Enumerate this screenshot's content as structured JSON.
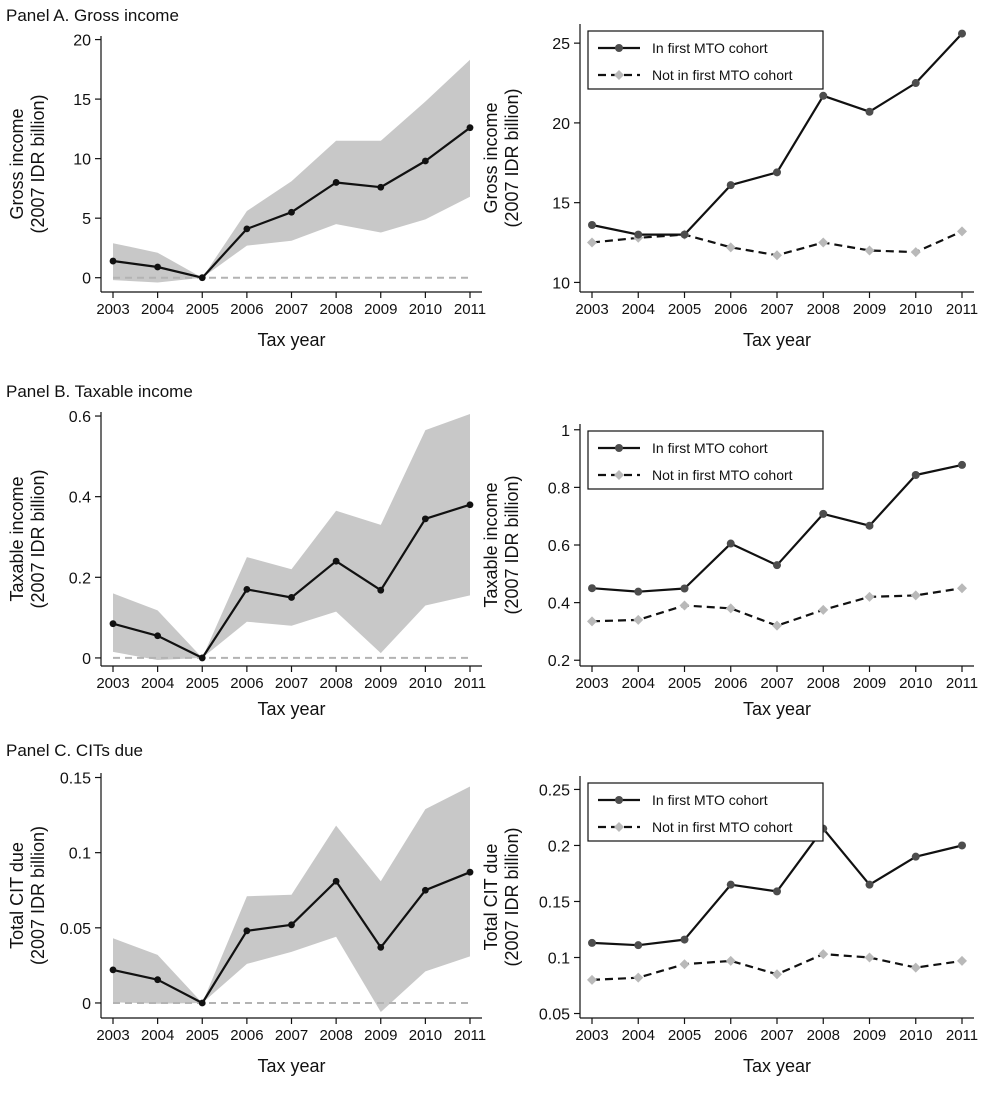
{
  "panels": [
    {
      "title": "Panel A. Gross income"
    },
    {
      "title": "Panel B. Taxable income"
    },
    {
      "title": "Panel C. CITs due"
    }
  ],
  "colors": {
    "band": "#c8c8c8",
    "line_solid": "#111111",
    "marker_solid": "#4d4d4d",
    "marker_dashed": "#b9b9b9",
    "zero_line": "#b3b3b3"
  },
  "chart_data": [
    {
      "type": "line",
      "panel": "A",
      "x": [
        2003,
        2004,
        2005,
        2006,
        2007,
        2008,
        2009,
        2010,
        2011
      ],
      "xlabel": "Tax year",
      "ylabel": [
        "Gross income",
        "(2007 IDR billion)"
      ],
      "ylim": [
        -1.2,
        20.3
      ],
      "yticks": [
        0,
        5,
        10,
        15,
        20
      ],
      "ytick_labels": [
        "0",
        "5",
        "10",
        "15",
        "20"
      ],
      "series": [
        {
          "values": [
            1.4,
            0.9,
            0.0,
            4.1,
            5.5,
            8.0,
            7.6,
            9.8,
            12.6
          ]
        }
      ],
      "band": {
        "lower": [
          -0.2,
          -0.4,
          0.0,
          2.7,
          3.1,
          4.5,
          3.8,
          4.9,
          6.8
        ],
        "upper": [
          2.9,
          2.1,
          0.0,
          5.6,
          8.1,
          11.5,
          11.5,
          14.8,
          18.3
        ]
      },
      "reference_line": 0
    },
    {
      "type": "line",
      "panel": "A",
      "x": [
        2003,
        2004,
        2005,
        2006,
        2007,
        2008,
        2009,
        2010,
        2011
      ],
      "xlabel": "Tax year",
      "ylabel": [
        "Gross income",
        "(2007 IDR billion)"
      ],
      "ylim": [
        9.4,
        26.2
      ],
      "yticks": [
        10,
        15,
        20,
        25
      ],
      "ytick_labels": [
        "10",
        "15",
        "20",
        "25"
      ],
      "legend": "top-left",
      "series": [
        {
          "name": "In first MTO cohort",
          "style": "solid",
          "values": [
            13.6,
            13.0,
            13.0,
            16.1,
            16.9,
            21.7,
            20.7,
            22.5,
            25.6
          ]
        },
        {
          "name": "Not in first MTO cohort",
          "style": "dashed",
          "values": [
            12.5,
            12.8,
            13.0,
            12.2,
            11.7,
            12.5,
            12.0,
            11.9,
            13.2
          ]
        }
      ]
    },
    {
      "type": "line",
      "panel": "B",
      "x": [
        2003,
        2004,
        2005,
        2006,
        2007,
        2008,
        2009,
        2010,
        2011
      ],
      "xlabel": "Tax year",
      "ylabel": [
        "Taxable income",
        "(2007 IDR billion)"
      ],
      "ylim": [
        -0.02,
        0.61
      ],
      "yticks": [
        0,
        0.2,
        0.4,
        0.6
      ],
      "ytick_labels": [
        "0",
        "0.2",
        "0.4",
        "0.6"
      ],
      "series": [
        {
          "values": [
            0.085,
            0.055,
            0.0,
            0.17,
            0.15,
            0.24,
            0.168,
            0.345,
            0.38
          ]
        }
      ],
      "band": {
        "lower": [
          0.015,
          -0.005,
          0.0,
          0.09,
          0.08,
          0.115,
          0.012,
          0.13,
          0.155
        ],
        "upper": [
          0.16,
          0.118,
          0.0,
          0.25,
          0.22,
          0.365,
          0.33,
          0.565,
          0.605
        ]
      },
      "reference_line": 0
    },
    {
      "type": "line",
      "panel": "B",
      "x": [
        2003,
        2004,
        2005,
        2006,
        2007,
        2008,
        2009,
        2010,
        2011
      ],
      "xlabel": "Tax year",
      "ylabel": [
        "Taxable income",
        "(2007 IDR billion)"
      ],
      "ylim": [
        0.18,
        1.02
      ],
      "yticks": [
        0.2,
        0.4,
        0.6,
        0.8,
        1.0
      ],
      "ytick_labels": [
        "0.2",
        "0.4",
        "0.6",
        "0.8",
        "1"
      ],
      "legend": "top-left",
      "series": [
        {
          "name": "In first MTO cohort",
          "style": "solid",
          "values": [
            0.45,
            0.438,
            0.449,
            0.605,
            0.53,
            0.708,
            0.667,
            0.843,
            0.878
          ]
        },
        {
          "name": "Not in first MTO cohort",
          "style": "dashed",
          "values": [
            0.335,
            0.34,
            0.39,
            0.38,
            0.32,
            0.375,
            0.42,
            0.425,
            0.45
          ]
        }
      ]
    },
    {
      "type": "line",
      "panel": "C",
      "x": [
        2003,
        2004,
        2005,
        2006,
        2007,
        2008,
        2009,
        2010,
        2011
      ],
      "xlabel": "Tax year",
      "ylabel": [
        "Total CIT due",
        "(2007 IDR billion)"
      ],
      "ylim": [
        -0.01,
        0.153
      ],
      "yticks": [
        0,
        0.05,
        0.1,
        0.15
      ],
      "ytick_labels": [
        "0",
        "0.05",
        "0.1",
        "0.15"
      ],
      "series": [
        {
          "values": [
            0.022,
            0.0155,
            0.0,
            0.048,
            0.052,
            0.081,
            0.037,
            0.075,
            0.087
          ]
        }
      ],
      "band": {
        "lower": [
          0.0005,
          -0.0005,
          0.0,
          0.026,
          0.034,
          0.044,
          -0.006,
          0.021,
          0.031
        ],
        "upper": [
          0.043,
          0.032,
          0.0,
          0.071,
          0.072,
          0.118,
          0.081,
          0.129,
          0.144
        ]
      },
      "reference_line": 0
    },
    {
      "type": "line",
      "panel": "C",
      "x": [
        2003,
        2004,
        2005,
        2006,
        2007,
        2008,
        2009,
        2010,
        2011
      ],
      "xlabel": "Tax year",
      "ylabel": [
        "Total CIT due",
        "(2007 IDR billion)"
      ],
      "ylim": [
        0.046,
        0.262
      ],
      "yticks": [
        0.05,
        0.1,
        0.15,
        0.2,
        0.25
      ],
      "ytick_labels": [
        "0.05",
        "0.1",
        "0.15",
        "0.2",
        "0.25"
      ],
      "legend": "top-left",
      "series": [
        {
          "name": "In first MTO cohort",
          "style": "solid",
          "values": [
            0.113,
            0.111,
            0.116,
            0.165,
            0.159,
            0.215,
            0.165,
            0.19,
            0.2
          ]
        },
        {
          "name": "Not in first MTO cohort",
          "style": "dashed",
          "values": [
            0.08,
            0.082,
            0.094,
            0.097,
            0.085,
            0.103,
            0.1,
            0.091,
            0.097
          ]
        }
      ]
    }
  ]
}
